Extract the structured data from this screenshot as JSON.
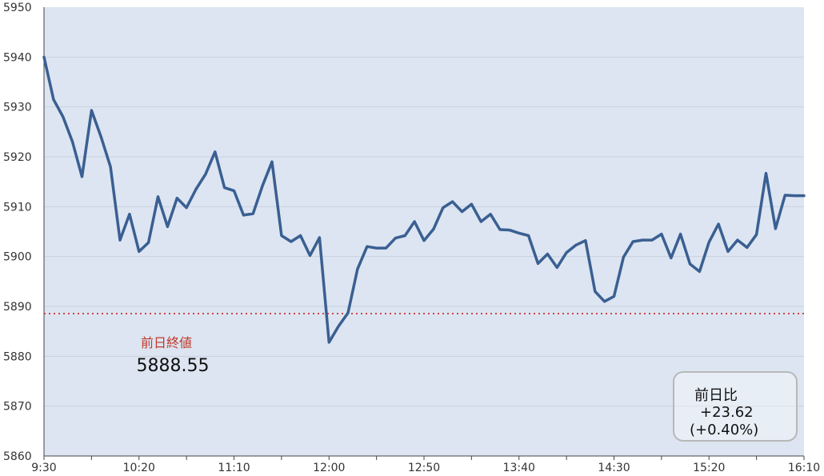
{
  "chart_data": {
    "type": "line",
    "x_tick_labels": [
      "9:30",
      "10:20",
      "11:10",
      "12:00",
      "12:50",
      "13:40",
      "14:30",
      "15:20",
      "16:10"
    ],
    "y_tick_labels": [
      "5860",
      "5870",
      "5880",
      "5890",
      "5900",
      "5910",
      "5920",
      "5930",
      "5940",
      "5950"
    ],
    "ylim": [
      5860,
      5950
    ],
    "grid": "horizontal",
    "colors": {
      "plot_background": "#dce5f1",
      "line": "#3a5f92",
      "reference_line": "#d0454c",
      "gridline": "#c9d2de"
    },
    "series": [
      {
        "x_minutes_from_open": [
          0,
          5,
          10,
          15,
          20,
          25,
          30,
          35,
          40,
          45,
          50,
          55,
          60,
          65,
          70,
          75,
          80,
          85,
          90,
          95,
          100,
          105,
          110,
          115,
          120,
          125,
          130,
          135,
          140,
          145,
          150,
          155,
          160,
          165,
          170,
          175,
          180,
          185,
          190,
          195,
          200,
          205,
          210,
          215,
          220,
          225,
          230,
          235,
          240,
          245,
          250,
          255,
          260,
          265,
          270,
          275,
          280,
          285,
          290,
          295,
          300,
          305,
          310,
          315,
          320,
          325,
          330,
          335,
          340,
          345,
          350,
          355,
          360,
          365,
          370,
          375,
          380,
          385,
          390,
          395,
          400
        ],
        "values": [
          5940,
          5931.5,
          5928,
          5923,
          5916,
          5929.3,
          5924,
          5918,
          5903.3,
          5908.5,
          5901,
          5902.8,
          5912,
          5906,
          5911.7,
          5909.8,
          5913.5,
          5916.5,
          5921,
          5913.8,
          5913.2,
          5908.3,
          5908.6,
          5914.2,
          5919,
          5904.2,
          5903,
          5904.2,
          5900.2,
          5903.8,
          5882.8,
          5886,
          5888.7,
          5897.5,
          5902,
          5901.7,
          5901.7,
          5903.7,
          5904.2,
          5907,
          5903.2,
          5905.5,
          5909.8,
          5911,
          5909,
          5910.5,
          5907,
          5908.5,
          5905.4,
          5905.3,
          5904.7,
          5904.2,
          5898.6,
          5900.5,
          5897.8,
          5900.8,
          5902.3,
          5903.2,
          5893,
          5891,
          5892,
          5899.9,
          5903,
          5903.3,
          5903.3,
          5904.5,
          5899.7,
          5904.5,
          5898.5,
          5897,
          5902.9,
          5906.5,
          5901,
          5903.3,
          5901.8,
          5904.4,
          5916.7,
          5905.6,
          5912.3,
          5912.2,
          5912.2
        ]
      }
    ],
    "reference_line": {
      "value": 5888.55,
      "label": "前日終値",
      "value_label": "5888.55"
    },
    "change_box": {
      "title": "前日比",
      "change": "+23.62",
      "percent": "(+0.40%)"
    }
  }
}
